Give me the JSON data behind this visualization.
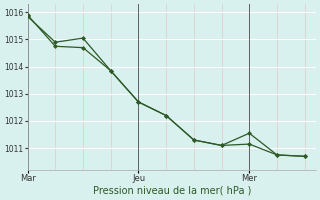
{
  "line1_x": [
    0,
    1,
    2,
    3,
    4,
    5,
    6,
    7,
    8,
    9,
    10
  ],
  "line1_y": [
    1015.85,
    1014.9,
    1015.05,
    1013.85,
    1012.7,
    1012.2,
    1011.3,
    1011.1,
    1011.15,
    1010.75,
    1010.7
  ],
  "line2_x": [
    0,
    1,
    2,
    3,
    4,
    5,
    6,
    7,
    8,
    9,
    10
  ],
  "line2_y": [
    1015.9,
    1014.75,
    1014.7,
    1013.85,
    1012.7,
    1012.2,
    1011.3,
    1011.1,
    1011.55,
    1010.75,
    1010.7
  ],
  "line_color": "#2d5a27",
  "bg_color": "#d8f0ee",
  "grid_h_color": "#ffffff",
  "grid_v_color": "#e0c8c8",
  "vline_color": "#606060",
  "xlabel": "Pression niveau de la mer( hPa )",
  "xlabel_color": "#2d5a27",
  "xtick_labels_main": [
    [
      "Mar",
      0
    ],
    [
      "Jeu",
      4
    ],
    [
      "Mer",
      8
    ]
  ],
  "ytick_positions": [
    1011,
    1012,
    1013,
    1014,
    1015,
    1016
  ],
  "ylim": [
    1010.2,
    1016.3
  ],
  "xlim": [
    0,
    10.4
  ],
  "vlines_dark": [
    4,
    8
  ],
  "vlines_light_count": 11
}
